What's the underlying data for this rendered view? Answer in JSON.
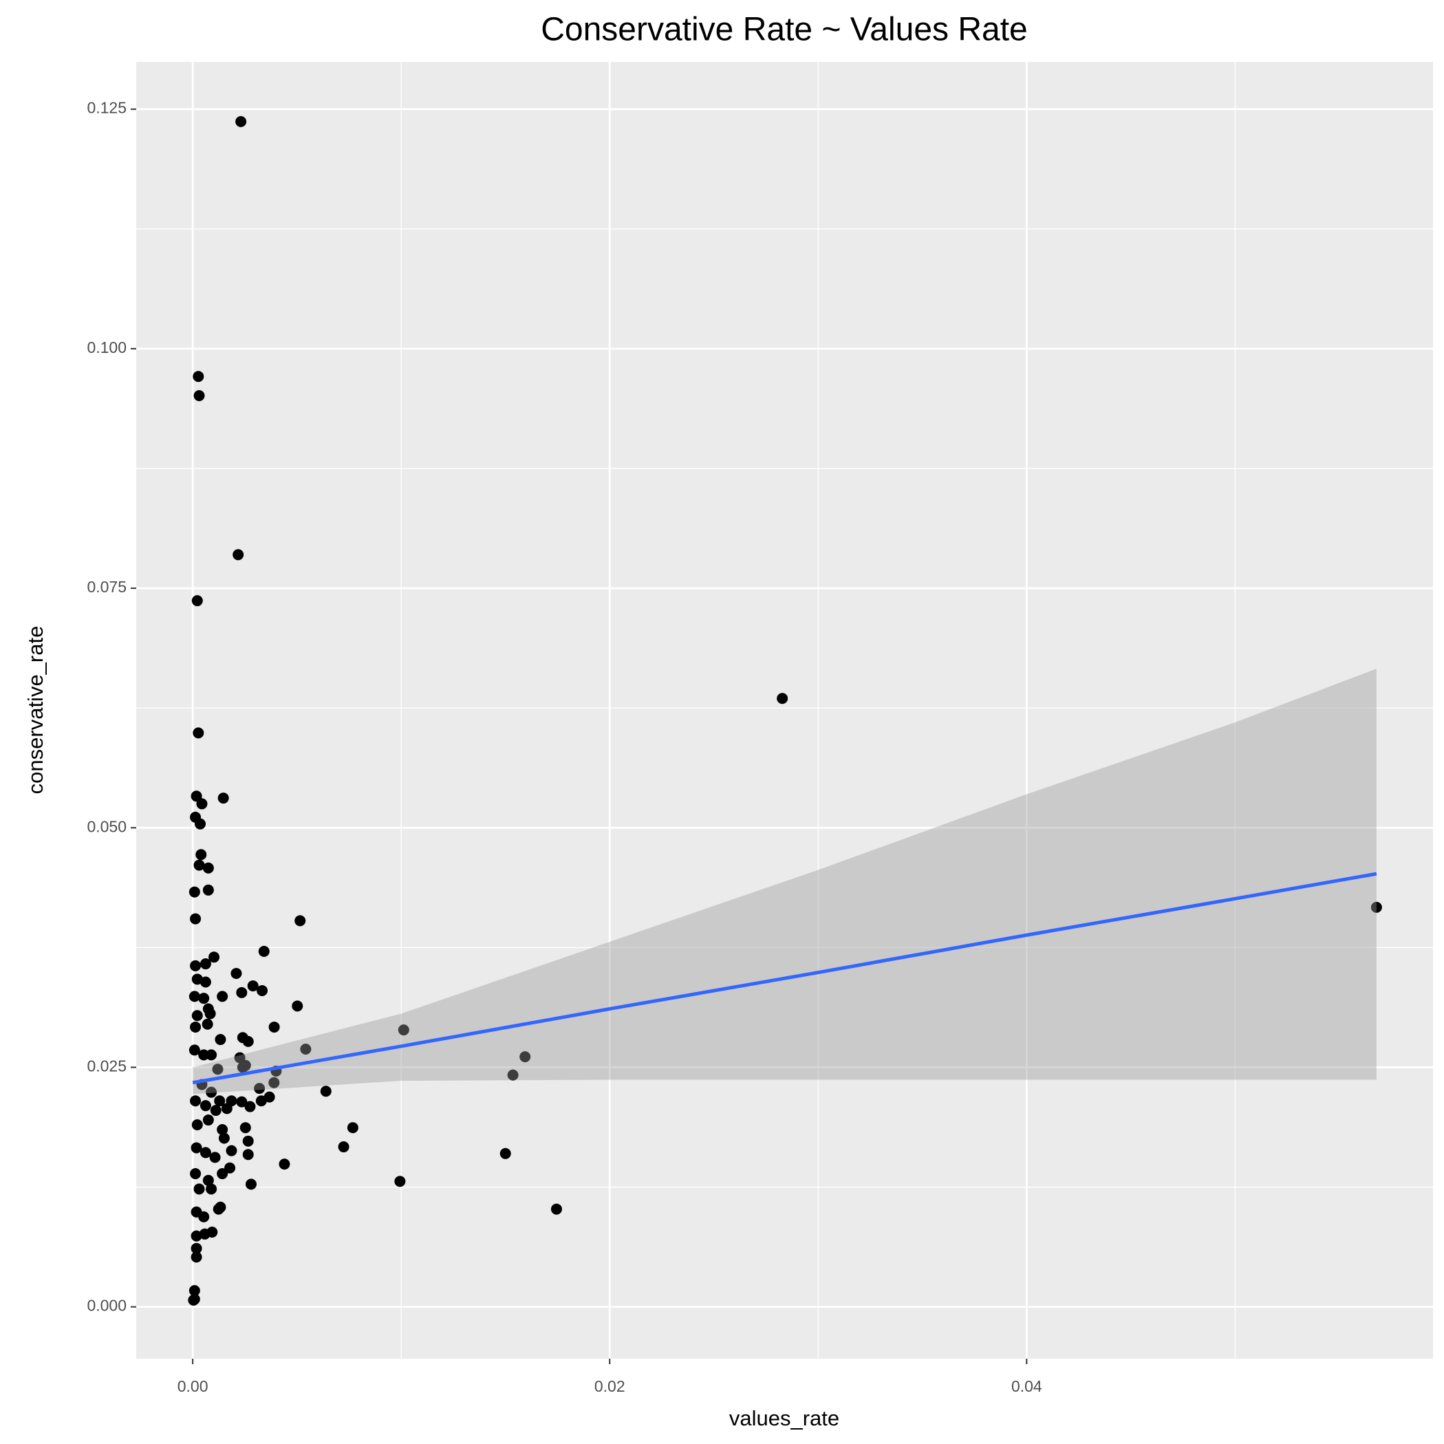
{
  "chart_data": {
    "type": "scatter",
    "title": "Conservative Rate ~ Values Rate",
    "x_label": "values_rate",
    "y_label": "conservative_rate",
    "xlim": [
      -0.00271,
      0.05949
    ],
    "ylim": [
      -0.00541,
      0.12993
    ],
    "xticks": [
      {
        "value": 0,
        "label": "0.00"
      },
      {
        "value": 0.02,
        "label": "0.02"
      },
      {
        "value": 0.04,
        "label": "0.04"
      }
    ],
    "yticks": [
      {
        "value": 0,
        "label": "0.000"
      },
      0.025,
      {
        "value": 0.05,
        "label": "0.050"
      },
      0.075,
      {
        "value": 0.1,
        "label": "0.100"
      },
      0.125
    ],
    "grid": true,
    "points": {
      "color": "#000000",
      "x": [
        0.00231,
        0.00027,
        0.00031,
        0.00218,
        0.00022,
        0.02828,
        0.00027,
        0.00018,
        0.00147,
        0.00044,
        0.00013,
        0.00036,
        0.0004,
        0.00031,
        0.00075,
        9e-05,
        0.00075,
        0.00013,
        0.00515,
        0.05678,
        0.00342,
        0.00102,
        0.00013,
        0.00062,
        0.00209,
        0.00022,
        0.00062,
        0.00289,
        0.00333,
        0.00235,
        9e-05,
        0.00053,
        0.00142,
        0.00502,
        0.00075,
        0.00022,
        0.00084,
        0.00391,
        0.01012,
        0.00013,
        0.00071,
        0.0024,
        0.00266,
        0.00133,
        0.00542,
        0.01594,
        0.00226,
        0.01536,
        9e-05,
        0.00053,
        0.00089,
        0.0024,
        0.00253,
        0.004,
        0.0012,
        0.0039,
        0.0032,
        0.00639,
        0.00044,
        0.00089,
        0.00368,
        0.00329,
        0.00235,
        0.00186,
        0.00129,
        0.00275,
        0.00013,
        0.00062,
        0.00164,
        0.00111,
        0.00253,
        0.00768,
        0.00022,
        0.00075,
        0.00142,
        0.00266,
        0.00151,
        0.00724,
        0.015,
        0.00266,
        0.00186,
        0.00018,
        0.00062,
        0.00107,
        0.0044,
        0.00178,
        0.00142,
        0.00013,
        0.00075,
        0.00994,
        0.0028,
        0.00031,
        0.00089,
        0.01745,
        0.00133,
        0.00124,
        0.00018,
        0.00053,
        0.00093,
        0.00018,
        0.00058,
        0.00018,
        0.00018,
        9e-05,
        4e-05,
        9e-05
      ],
      "y": [
        0.1237,
        0.0971,
        0.0951,
        0.0785,
        0.0737,
        0.0635,
        0.0599,
        0.0533,
        0.0531,
        0.0525,
        0.0511,
        0.0504,
        0.0472,
        0.0461,
        0.0458,
        0.0433,
        0.0435,
        0.0405,
        0.0403,
        0.0417,
        0.0371,
        0.0365,
        0.0356,
        0.0358,
        0.0348,
        0.0342,
        0.0339,
        0.0335,
        0.033,
        0.0328,
        0.0324,
        0.0322,
        0.0324,
        0.0314,
        0.0311,
        0.0304,
        0.0306,
        0.0292,
        0.0289,
        0.0292,
        0.0295,
        0.0281,
        0.0277,
        0.0279,
        0.0269,
        0.0261,
        0.026,
        0.0242,
        0.0268,
        0.0263,
        0.0263,
        0.025,
        0.0252,
        0.0246,
        0.0248,
        0.0234,
        0.0228,
        0.0225,
        0.0232,
        0.0224,
        0.0219,
        0.0215,
        0.0214,
        0.0215,
        0.0215,
        0.0209,
        0.0215,
        0.021,
        0.0207,
        0.0205,
        0.0187,
        0.0187,
        0.019,
        0.0195,
        0.0185,
        0.0173,
        0.0176,
        0.0167,
        0.016,
        0.0159,
        0.0163,
        0.0166,
        0.0161,
        0.0156,
        0.0149,
        0.0145,
        0.0139,
        0.0139,
        0.0132,
        0.0131,
        0.0128,
        0.0123,
        0.0123,
        0.0102,
        0.0104,
        0.0102,
        0.0099,
        0.0094,
        0.0078,
        0.0074,
        0.0076,
        0.0061,
        0.0052,
        0.0017,
        0.0007,
        0.0008
      ]
    },
    "fit": {
      "color": "#3366ff",
      "band_color": "#999999",
      "x": [
        0,
        0.01,
        0.02,
        0.03,
        0.04,
        0.05,
        0.05678
      ],
      "y": [
        0.0234,
        0.0272,
        0.0311,
        0.0349,
        0.0388,
        0.0426,
        0.0452
      ],
      "lower": [
        0.0222,
        0.0236,
        0.0237,
        0.0237,
        0.0237,
        0.0237,
        0.0237
      ],
      "upper": [
        0.025,
        0.0306,
        0.0381,
        0.0456,
        0.0535,
        0.061,
        0.0666
      ]
    }
  }
}
